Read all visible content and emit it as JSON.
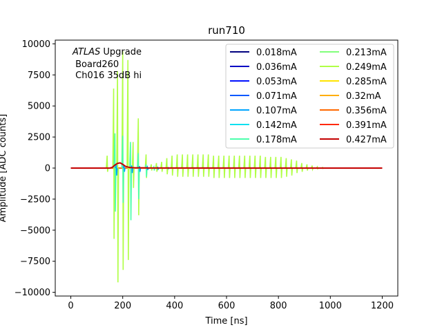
{
  "chart_data": {
    "type": "line",
    "title": "run710",
    "xlabel": "Time [ns]",
    "ylabel": "Amplitude [ADC counts]",
    "xlim": [
      -60,
      1260
    ],
    "ylim": [
      -10300,
      10300
    ],
    "x_ticks": [
      0,
      200,
      400,
      600,
      800,
      1000,
      1200
    ],
    "y_ticks": [
      -10000,
      -7500,
      -5000,
      -2500,
      0,
      2500,
      5000,
      7500,
      10000
    ],
    "grid": false,
    "legend_placement": "top-right",
    "legend_columns": 2,
    "annotation": {
      "italic": "ATLAS",
      "line1_rest": " Upgrade",
      "line2": " Board260",
      "line3": " Ch016 35dB hi"
    },
    "series": [
      {
        "name": "0.018mA",
        "color": "#00007f"
      },
      {
        "name": "0.036mA",
        "color": "#0000c4"
      },
      {
        "name": "0.053mA",
        "color": "#0010ff"
      },
      {
        "name": "0.071mA",
        "color": "#0058ff"
      },
      {
        "name": "0.107mA",
        "color": "#00a4ff"
      },
      {
        "name": "0.142mA",
        "color": "#0de0f0"
      },
      {
        "name": "0.178mA",
        "color": "#4bffac"
      },
      {
        "name": "0.213mA",
        "color": "#80ff7a"
      },
      {
        "name": "0.249mA",
        "color": "#b0ff46"
      },
      {
        "name": "0.285mA",
        "color": "#ffe400"
      },
      {
        "name": "0.32mA",
        "color": "#ffae00"
      },
      {
        "name": "0.356mA",
        "color": "#ff6800"
      },
      {
        "name": "0.391mA",
        "color": "#ff2800"
      },
      {
        "name": "0.427mA",
        "color": "#c40000"
      }
    ],
    "spike_series": [
      {
        "series": "0.249mA",
        "x": [
          140,
          165,
          180,
          200,
          220,
          240,
          260,
          290,
          310,
          330
        ],
        "y_max": [
          1000,
          6400,
          7800,
          9400,
          8700,
          2100,
          4000,
          1100,
          300,
          400
        ],
        "y_min": [
          -300,
          -5700,
          -9200,
          -8200,
          -7400,
          -1600,
          -3800,
          -800,
          -200,
          -300
        ]
      },
      {
        "series": "0.249mA",
        "x": [
          350,
          370,
          390,
          410,
          430,
          450,
          470,
          490,
          510,
          530,
          550,
          570,
          590,
          610,
          630,
          650,
          670,
          690,
          710,
          730,
          750,
          770,
          790,
          810,
          830,
          850,
          870,
          890,
          910,
          930,
          950,
          970
        ],
        "y_max": [
          500,
          800,
          1000,
          1100,
          1100,
          1100,
          1100,
          1100,
          1100,
          1100,
          1000,
          1000,
          1000,
          1000,
          1000,
          1000,
          1000,
          1000,
          1000,
          1000,
          900,
          900,
          900,
          900,
          800,
          700,
          600,
          400,
          300,
          200,
          100,
          50
        ],
        "y_min": [
          -300,
          -500,
          -600,
          -700,
          -700,
          -700,
          -700,
          -700,
          -700,
          -700,
          -800,
          -800,
          -800,
          -800,
          -800,
          -800,
          -800,
          -800,
          -800,
          -800,
          -800,
          -800,
          -800,
          -800,
          -700,
          -600,
          -400,
          -300,
          -200,
          -100,
          -50,
          -30
        ]
      },
      {
        "series": "0.178mA",
        "x": [
          170,
          200,
          230,
          260,
          290,
          320
        ],
        "y_max": [
          2800,
          2600,
          2100,
          1200,
          300,
          100
        ],
        "y_min": [
          -3500,
          -2800,
          -4200,
          -2500,
          -700,
          -200
        ]
      },
      {
        "series": "0.107mA",
        "x": [
          175,
          205,
          235,
          265,
          295,
          335,
          375
        ],
        "y_max": [
          300,
          250,
          200,
          150,
          100,
          60,
          40
        ],
        "y_min": [
          -600,
          -300,
          -400,
          -300,
          -150,
          -80,
          -40
        ]
      }
    ],
    "smooth_series": {
      "series": "0.427mA",
      "x": [
        0,
        150,
        160,
        170,
        180,
        190,
        200,
        210,
        220,
        230,
        240,
        250,
        260,
        280,
        300,
        320,
        1200
      ],
      "y": [
        0,
        0,
        60,
        250,
        380,
        420,
        300,
        150,
        80,
        40,
        30,
        20,
        20,
        20,
        10,
        5,
        0
      ]
    },
    "flat_series": {
      "series": "0.356mA",
      "x": [
        0,
        1200
      ],
      "y": [
        0,
        0
      ]
    }
  }
}
